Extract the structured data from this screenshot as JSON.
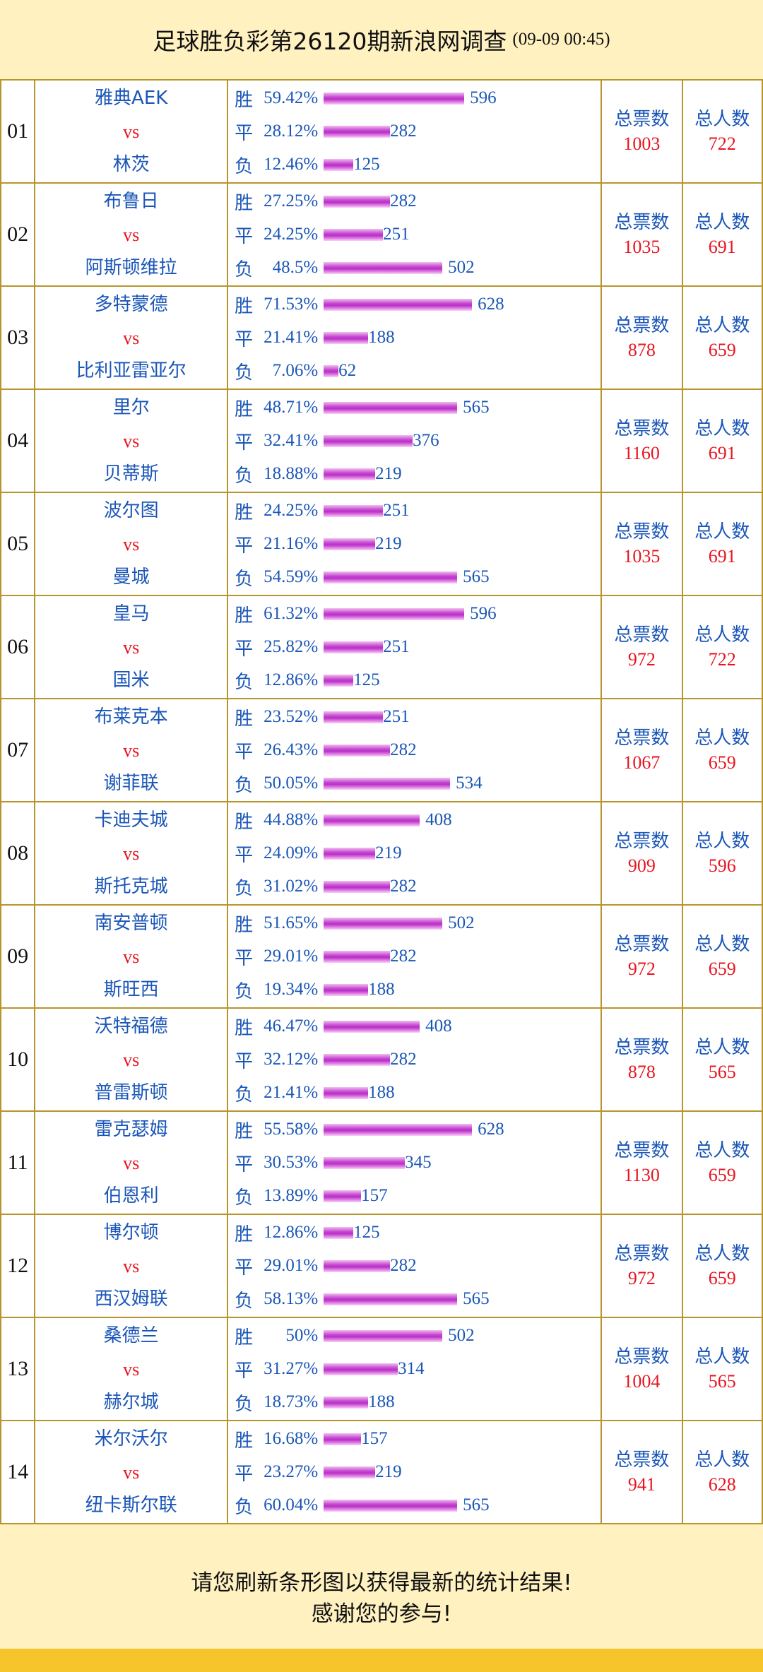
{
  "header": {
    "title": "足球胜负彩第26120期新浪网调查",
    "timestamp": "(09-09 00:45)"
  },
  "labels": {
    "win": "胜",
    "draw": "平",
    "lose": "负",
    "vs": "vs",
    "total_votes": "总票数",
    "total_people": "总人数"
  },
  "colors": {
    "border": "#b8952c",
    "text_blue": "#1a56b8",
    "text_red": "#e8141f",
    "bar": "#c54ad0",
    "background": "#fff1c0"
  },
  "chart_data": {
    "type": "bar",
    "scale_max": 628,
    "matches": [
      {
        "no": "01",
        "home": "雅典AEK",
        "away": "林茨",
        "win": {
          "pct": "59.42%",
          "count": 596
        },
        "draw": {
          "pct": "28.12%",
          "count": 282
        },
        "lose": {
          "pct": "12.46%",
          "count": 125
        },
        "total_votes": "1003",
        "total_people": "722"
      },
      {
        "no": "02",
        "home": "布鲁日",
        "away": "阿斯顿维拉",
        "win": {
          "pct": "27.25%",
          "count": 282
        },
        "draw": {
          "pct": "24.25%",
          "count": 251
        },
        "lose": {
          "pct": "48.5%",
          "count": 502
        },
        "total_votes": "1035",
        "total_people": "691"
      },
      {
        "no": "03",
        "home": "多特蒙德",
        "away": "比利亚雷亚尔",
        "win": {
          "pct": "71.53%",
          "count": 628
        },
        "draw": {
          "pct": "21.41%",
          "count": 188
        },
        "lose": {
          "pct": "7.06%",
          "count": 62
        },
        "total_votes": "878",
        "total_people": "659"
      },
      {
        "no": "04",
        "home": "里尔",
        "away": "贝蒂斯",
        "win": {
          "pct": "48.71%",
          "count": 565
        },
        "draw": {
          "pct": "32.41%",
          "count": 376
        },
        "lose": {
          "pct": "18.88%",
          "count": 219
        },
        "total_votes": "1160",
        "total_people": "691"
      },
      {
        "no": "05",
        "home": "波尔图",
        "away": "曼城",
        "win": {
          "pct": "24.25%",
          "count": 251
        },
        "draw": {
          "pct": "21.16%",
          "count": 219
        },
        "lose": {
          "pct": "54.59%",
          "count": 565
        },
        "total_votes": "1035",
        "total_people": "691"
      },
      {
        "no": "06",
        "home": "皇马",
        "away": "国米",
        "win": {
          "pct": "61.32%",
          "count": 596
        },
        "draw": {
          "pct": "25.82%",
          "count": 251
        },
        "lose": {
          "pct": "12.86%",
          "count": 125
        },
        "total_votes": "972",
        "total_people": "722"
      },
      {
        "no": "07",
        "home": "布莱克本",
        "away": "谢菲联",
        "win": {
          "pct": "23.52%",
          "count": 251
        },
        "draw": {
          "pct": "26.43%",
          "count": 282
        },
        "lose": {
          "pct": "50.05%",
          "count": 534
        },
        "total_votes": "1067",
        "total_people": "659"
      },
      {
        "no": "08",
        "home": "卡迪夫城",
        "away": "斯托克城",
        "win": {
          "pct": "44.88%",
          "count": 408
        },
        "draw": {
          "pct": "24.09%",
          "count": 219
        },
        "lose": {
          "pct": "31.02%",
          "count": 282
        },
        "total_votes": "909",
        "total_people": "596"
      },
      {
        "no": "09",
        "home": "南安普顿",
        "away": "斯旺西",
        "win": {
          "pct": "51.65%",
          "count": 502
        },
        "draw": {
          "pct": "29.01%",
          "count": 282
        },
        "lose": {
          "pct": "19.34%",
          "count": 188
        },
        "total_votes": "972",
        "total_people": "659"
      },
      {
        "no": "10",
        "home": "沃特福德",
        "away": "普雷斯顿",
        "win": {
          "pct": "46.47%",
          "count": 408
        },
        "draw": {
          "pct": "32.12%",
          "count": 282
        },
        "lose": {
          "pct": "21.41%",
          "count": 188
        },
        "total_votes": "878",
        "total_people": "565"
      },
      {
        "no": "11",
        "home": "雷克瑟姆",
        "away": "伯恩利",
        "win": {
          "pct": "55.58%",
          "count": 628
        },
        "draw": {
          "pct": "30.53%",
          "count": 345
        },
        "lose": {
          "pct": "13.89%",
          "count": 157
        },
        "total_votes": "1130",
        "total_people": "659"
      },
      {
        "no": "12",
        "home": "博尔顿",
        "away": "西汉姆联",
        "win": {
          "pct": "12.86%",
          "count": 125
        },
        "draw": {
          "pct": "29.01%",
          "count": 282
        },
        "lose": {
          "pct": "58.13%",
          "count": 565
        },
        "total_votes": "972",
        "total_people": "659"
      },
      {
        "no": "13",
        "home": "桑德兰",
        "away": "赫尔城",
        "win": {
          "pct": "50%",
          "count": 502
        },
        "draw": {
          "pct": "31.27%",
          "count": 314
        },
        "lose": {
          "pct": "18.73%",
          "count": 188
        },
        "total_votes": "1004",
        "total_people": "565"
      },
      {
        "no": "14",
        "home": "米尔沃尔",
        "away": "纽卡斯尔联",
        "win": {
          "pct": "16.68%",
          "count": 157
        },
        "draw": {
          "pct": "23.27%",
          "count": 219
        },
        "lose": {
          "pct": "60.04%",
          "count": 565
        },
        "total_votes": "941",
        "total_people": "628"
      }
    ]
  },
  "footer": {
    "line1": "请您刷新条形图以获得最新的统计结果!",
    "line2": "感谢您的参与!"
  }
}
